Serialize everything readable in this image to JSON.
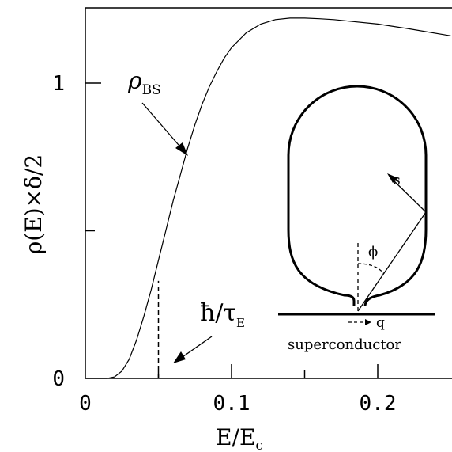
{
  "chart_data": {
    "type": "line",
    "xlabel": "E/E",
    "xlabel_sub": "c",
    "ylabel": "ρ(E)×δ/2",
    "xlim": [
      0,
      0.25
    ],
    "ylim": [
      0,
      1.25
    ],
    "x_ticks": [
      {
        "value": 0,
        "label": "0"
      },
      {
        "value": 0.1,
        "label": "0.1"
      },
      {
        "value": 0.2,
        "label": "0.2"
      }
    ],
    "x_minor_ticks": [
      0.05,
      0.15
    ],
    "y_ticks": [
      {
        "value": 0,
        "label": "0"
      },
      {
        "value": 1,
        "label": "1"
      }
    ],
    "y_minor_ticks": [
      0.5
    ],
    "series": [
      {
        "name": "ρBS",
        "x": [
          0.0,
          0.015,
          0.02,
          0.025,
          0.03,
          0.035,
          0.04,
          0.045,
          0.05,
          0.055,
          0.06,
          0.065,
          0.07,
          0.075,
          0.08,
          0.085,
          0.09,
          0.095,
          0.1,
          0.11,
          0.12,
          0.13,
          0.14,
          0.15,
          0.16,
          0.17,
          0.18,
          0.2,
          0.22,
          0.25
        ],
        "y": [
          0.0,
          0.0,
          0.005,
          0.025,
          0.065,
          0.13,
          0.21,
          0.3,
          0.4,
          0.5,
          0.6,
          0.69,
          0.78,
          0.86,
          0.93,
          0.99,
          1.04,
          1.085,
          1.12,
          1.17,
          1.2,
          1.215,
          1.22,
          1.22,
          1.218,
          1.215,
          1.21,
          1.2,
          1.185,
          1.16
        ]
      }
    ],
    "marker": {
      "x": 0.05,
      "y_top": 0.33
    }
  },
  "annotations": {
    "rho_bs": "ρ",
    "rho_bs_sub": "BS",
    "htau": "ħ/τ",
    "htau_sub": "E",
    "inset_s": "s",
    "inset_phi": "ϕ",
    "inset_q": "q",
    "inset_superconductor": "superconductor"
  }
}
